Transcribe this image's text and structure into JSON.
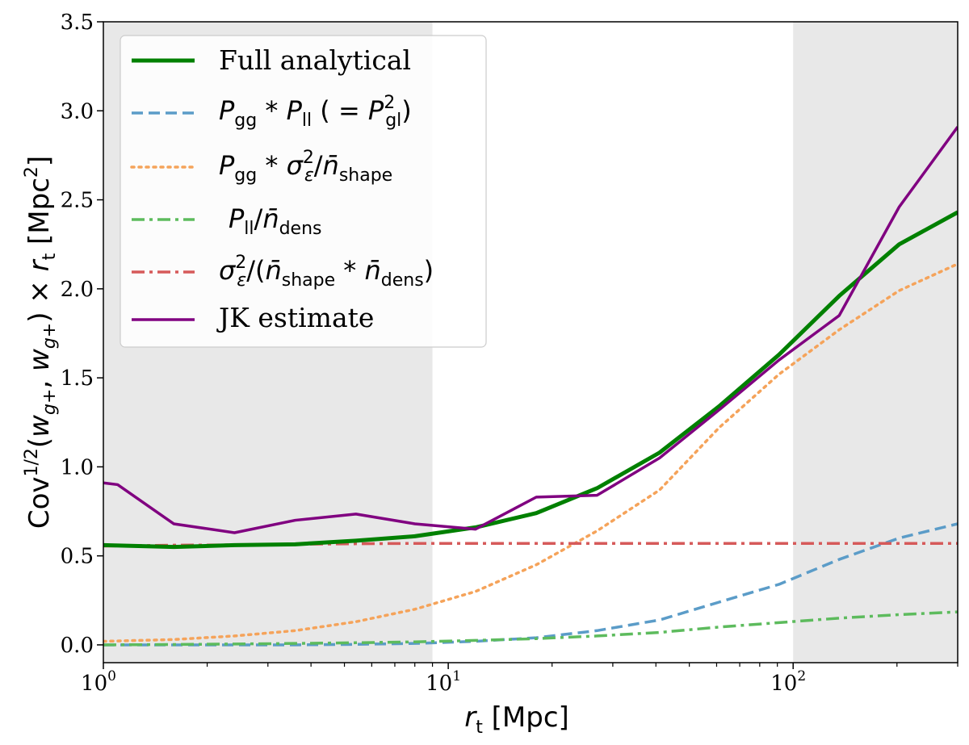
{
  "chart_data": {
    "type": "line",
    "xscale": "log",
    "xlim": [
      1,
      300
    ],
    "ylim": [
      -0.1,
      3.5
    ],
    "xlabel": "r_t [Mpc]",
    "ylabel": "Cov^{1/2}(w_{g+}, w_{g+}) × r_t [Mpc^2]",
    "grid": false,
    "legend_position": "upper-left",
    "x_ticks": [
      {
        "value": 1,
        "base": "10",
        "exp": "0"
      },
      {
        "value": 10,
        "base": "10",
        "exp": "1"
      },
      {
        "value": 100,
        "base": "10",
        "exp": "2"
      }
    ],
    "y_ticks": [
      "0.0",
      "0.5",
      "1.0",
      "1.5",
      "2.0",
      "2.5",
      "3.0",
      "3.5"
    ],
    "shaded_regions": [
      {
        "x_from": 1,
        "x_to": 9,
        "color": "#e8e8e8"
      },
      {
        "x_from": 100,
        "x_to": 300,
        "color": "#e8e8e8"
      }
    ],
    "series": [
      {
        "id": "full",
        "name": "Full analytical",
        "color": "#008000",
        "dash": "solid",
        "width": 5,
        "x": [
          1.0,
          1.6,
          2.4,
          3.6,
          5.4,
          8.0,
          12.0,
          18.0,
          27.0,
          41.0,
          61.0,
          91.0,
          136.0,
          203.0,
          300.0
        ],
        "y": [
          0.56,
          0.55,
          0.56,
          0.565,
          0.585,
          0.61,
          0.66,
          0.74,
          0.88,
          1.08,
          1.34,
          1.63,
          1.96,
          2.25,
          2.43
        ]
      },
      {
        "id": "pgg_pll",
        "name": "P_gg * P_ll (= P_gl^2)",
        "color": "#5b9cc8",
        "dash": "dashed",
        "width": 3.5,
        "x": [
          1.0,
          1.6,
          2.4,
          3.6,
          5.4,
          8.0,
          12.0,
          18.0,
          27.0,
          41.0,
          61.0,
          91.0,
          136.0,
          203.0,
          300.0
        ],
        "y": [
          0.0,
          0.0,
          0.0,
          0.0,
          0.003,
          0.008,
          0.02,
          0.04,
          0.08,
          0.14,
          0.24,
          0.34,
          0.48,
          0.6,
          0.68
        ]
      },
      {
        "id": "pgg_sigma",
        "name": "P_gg * σ_ε^2 / n̄_shape",
        "color": "#f5a35a",
        "dash": "dotted",
        "width": 3.5,
        "x": [
          1.0,
          1.6,
          2.4,
          3.6,
          5.4,
          8.0,
          12.0,
          18.0,
          27.0,
          41.0,
          61.0,
          91.0,
          136.0,
          203.0,
          300.0
        ],
        "y": [
          0.02,
          0.03,
          0.05,
          0.08,
          0.13,
          0.2,
          0.3,
          0.45,
          0.64,
          0.87,
          1.22,
          1.52,
          1.77,
          1.99,
          2.14
        ]
      },
      {
        "id": "pll_ndens",
        "name": "P_ll / n̄_dens",
        "color": "#5dbb5d",
        "dash": "dashdot",
        "width": 3.5,
        "x": [
          1.0,
          1.6,
          2.4,
          3.6,
          5.4,
          8.0,
          12.0,
          18.0,
          27.0,
          41.0,
          61.0,
          91.0,
          136.0,
          203.0,
          300.0
        ],
        "y": [
          0.0,
          0.002,
          0.005,
          0.008,
          0.012,
          0.017,
          0.025,
          0.035,
          0.05,
          0.07,
          0.1,
          0.125,
          0.15,
          0.17,
          0.185
        ]
      },
      {
        "id": "sigma_ns_nd",
        "name": "σ_ε^2 / (n̄_shape * n̄_dens)",
        "color": "#d65a5a",
        "dash": "dashdot",
        "width": 3.5,
        "x": [
          1.0,
          1.6,
          2.4,
          3.6,
          5.4,
          8.0,
          12.0,
          18.0,
          27.0,
          41.0,
          61.0,
          91.0,
          136.0,
          203.0,
          300.0
        ],
        "y": [
          0.555,
          0.56,
          0.562,
          0.565,
          0.568,
          0.57,
          0.57,
          0.57,
          0.57,
          0.57,
          0.57,
          0.57,
          0.57,
          0.57,
          0.57
        ]
      },
      {
        "id": "jk",
        "name": "JK estimate",
        "color": "#800080",
        "dash": "solid",
        "width": 3.5,
        "x": [
          1.0,
          1.1,
          1.6,
          2.4,
          3.6,
          5.4,
          8.0,
          12.0,
          18.0,
          27.0,
          41.0,
          61.0,
          91.0,
          136.0,
          203.0,
          300.0
        ],
        "y": [
          0.91,
          0.9,
          0.68,
          0.63,
          0.7,
          0.735,
          0.68,
          0.65,
          0.83,
          0.84,
          1.05,
          1.32,
          1.6,
          1.85,
          2.46,
          2.91
        ]
      }
    ],
    "legend": {
      "order": [
        "full",
        "pgg_pll",
        "pgg_sigma",
        "pll_ndens",
        "sigma_ns_nd",
        "jk"
      ]
    }
  }
}
